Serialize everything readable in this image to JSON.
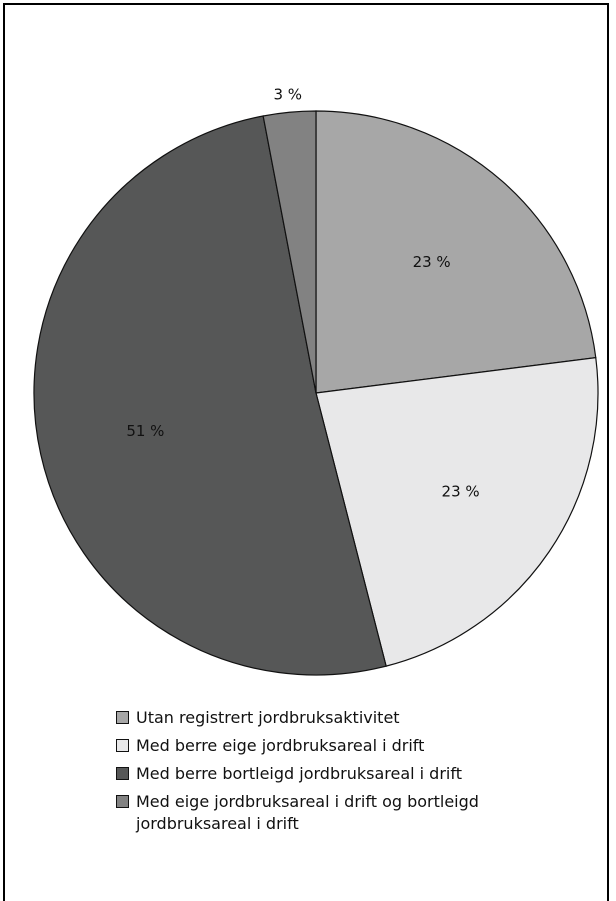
{
  "chart_data": {
    "type": "pie",
    "title": "",
    "slices": [
      {
        "name": "Utan registrert jordbruksaktivitet",
        "value": 23,
        "label": "23 %",
        "color": "#a7a7a7"
      },
      {
        "name": "Med berre eige jordbruksareal i drift",
        "value": 23,
        "label": "23 %",
        "color": "#e8e8e9"
      },
      {
        "name": "Med berre bortleigd jordbruksareal i drift",
        "value": 51,
        "label": "51 %",
        "color": "#565757"
      },
      {
        "name": "Med eige jordbruksareal i drift og bortleigd jordbruksareal i drift",
        "value": 3,
        "label": "3 %",
        "color": "#828282"
      }
    ],
    "legend_position": "bottom",
    "start": "top",
    "direction": "clockwise"
  },
  "legend": {
    "items": [
      {
        "label": "Utan registrert jordbruksaktivitet",
        "color": "#a7a7a7"
      },
      {
        "label": "Med berre eige jordbruksareal i drift",
        "color": "#e8e8e9"
      },
      {
        "label": "Med berre bortleigd jordbruksareal i drift",
        "color": "#565757"
      },
      {
        "label": "Med eige jordbruksareal i drift og bortleigd jordbruksareal i drift",
        "color": "#828282"
      }
    ]
  }
}
